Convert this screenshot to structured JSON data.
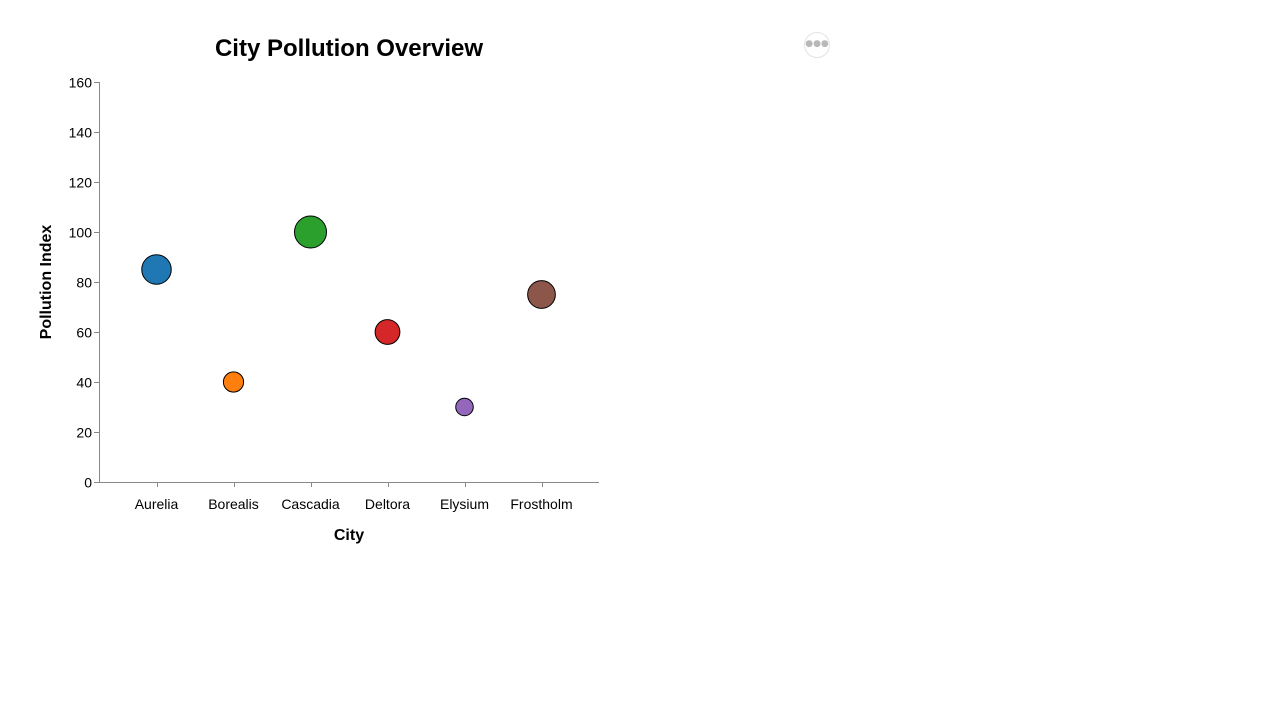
{
  "actions_menu": {
    "icon": "more-horizontal-icon",
    "glyph": "●●●"
  },
  "chart_data": {
    "type": "scatter",
    "title": "City Pollution Overview",
    "xlabel": "City",
    "ylabel": "Pollution Index",
    "categories": [
      "Aurelia",
      "Borealis",
      "Cascadia",
      "Deltora",
      "Elysium",
      "Frostholm"
    ],
    "values": [
      85,
      40,
      100,
      60,
      30,
      75
    ],
    "colors": [
      "#1f77b4",
      "#ff7f0e",
      "#2ca02c",
      "#d62728",
      "#9467bd",
      "#8c564b"
    ],
    "ylim": [
      0,
      160
    ],
    "yticks": [
      0,
      20,
      40,
      60,
      80,
      100,
      120,
      140,
      160
    ],
    "grid": false,
    "legend": "none",
    "marker_stroke": "#000000"
  }
}
